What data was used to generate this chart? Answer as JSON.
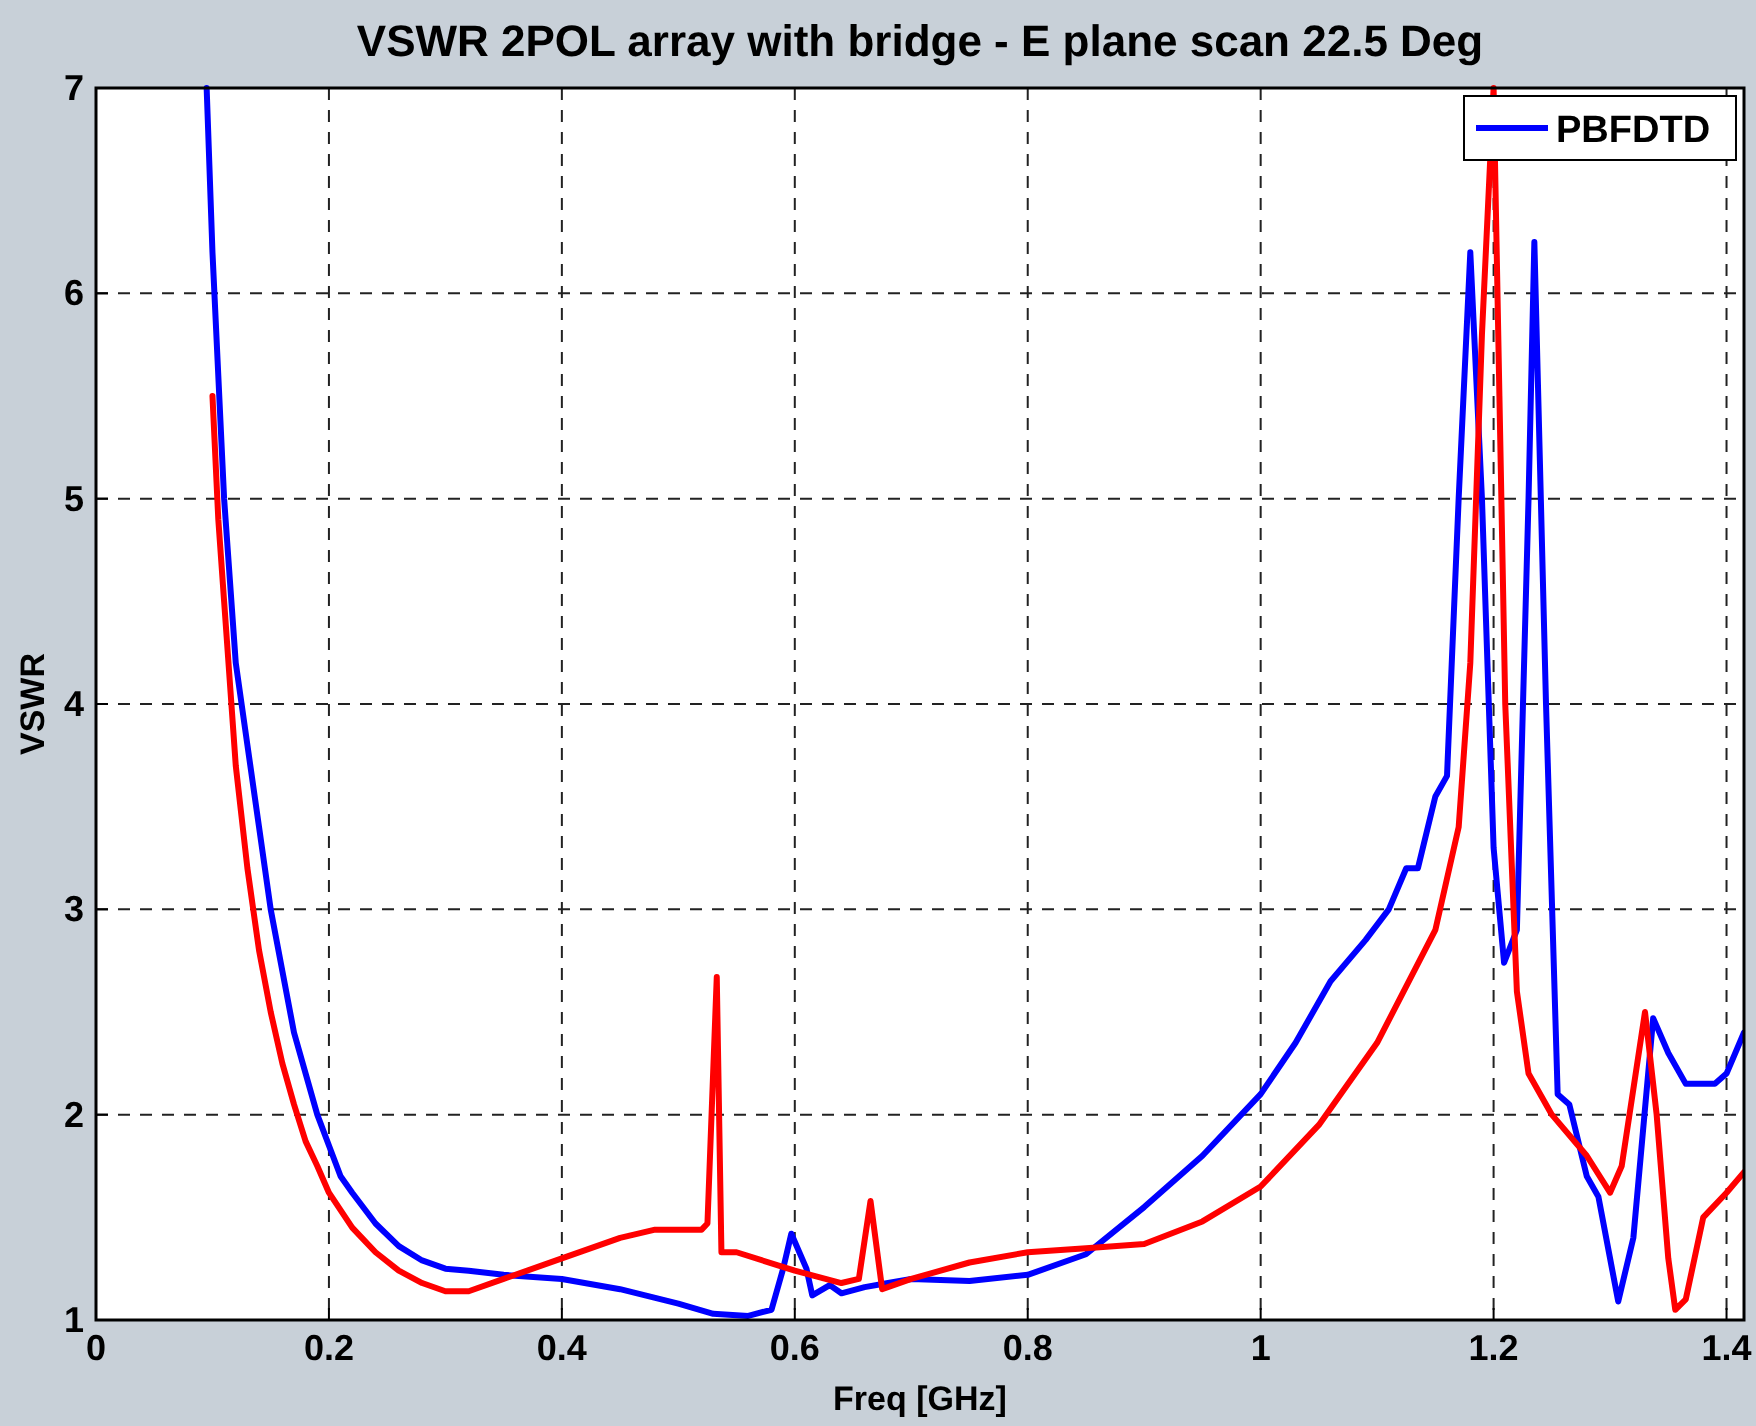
{
  "chart_data": {
    "type": "line",
    "title": "VSWR 2POL array with bridge - E plane scan 22.5 Deg",
    "xlabel": "Freq [GHz]",
    "ylabel": "VSWR",
    "xlim": [
      0,
      1.415
    ],
    "ylim": [
      1,
      7
    ],
    "xticks": [
      0,
      0.2,
      0.4,
      0.6,
      0.8,
      1,
      1.2,
      1.4
    ],
    "yticks": [
      1,
      2,
      3,
      4,
      5,
      6,
      7
    ],
    "grid": true,
    "legend": "top right",
    "line_style": "solid",
    "marker": "none",
    "series": [
      {
        "name": "PBFDTD",
        "color": "#0000ff",
        "x": [
          0.095,
          0.1,
          0.11,
          0.12,
          0.13,
          0.14,
          0.15,
          0.16,
          0.17,
          0.18,
          0.19,
          0.2,
          0.21,
          0.22,
          0.24,
          0.26,
          0.28,
          0.3,
          0.32,
          0.35,
          0.4,
          0.45,
          0.5,
          0.53,
          0.56,
          0.58,
          0.59,
          0.597,
          0.61,
          0.615,
          0.63,
          0.64,
          0.66,
          0.68,
          0.7,
          0.75,
          0.8,
          0.85,
          0.9,
          0.95,
          1.0,
          1.03,
          1.06,
          1.09,
          1.11,
          1.125,
          1.135,
          1.15,
          1.16,
          1.17,
          1.18,
          1.19,
          1.2,
          1.209,
          1.22,
          1.23,
          1.235,
          1.245,
          1.255,
          1.265,
          1.28,
          1.29,
          1.3,
          1.307,
          1.32,
          1.337,
          1.35,
          1.365,
          1.38,
          1.39,
          1.4,
          1.415
        ],
        "values": [
          7,
          6.2,
          5.0,
          4.2,
          3.8,
          3.4,
          3.0,
          2.7,
          2.4,
          2.2,
          2.0,
          1.85,
          1.7,
          1.62,
          1.47,
          1.36,
          1.29,
          1.25,
          1.24,
          1.22,
          1.2,
          1.15,
          1.08,
          1.03,
          1.02,
          1.05,
          1.25,
          1.42,
          1.25,
          1.12,
          1.17,
          1.13,
          1.16,
          1.18,
          1.2,
          1.19,
          1.22,
          1.32,
          1.55,
          1.8,
          2.1,
          2.35,
          2.65,
          2.85,
          3.0,
          3.2,
          3.2,
          3.55,
          3.65,
          5.0,
          6.2,
          5.0,
          3.3,
          2.74,
          2.9,
          5.0,
          6.25,
          4.0,
          2.1,
          2.05,
          1.7,
          1.6,
          1.3,
          1.09,
          1.4,
          2.47,
          2.3,
          2.15,
          2.15,
          2.15,
          2.2,
          2.4
        ]
      },
      {
        "color": "#ff0000",
        "x": [
          0.1,
          0.105,
          0.11,
          0.12,
          0.13,
          0.14,
          0.15,
          0.16,
          0.17,
          0.18,
          0.19,
          0.2,
          0.22,
          0.24,
          0.26,
          0.28,
          0.3,
          0.32,
          0.35,
          0.4,
          0.45,
          0.48,
          0.52,
          0.525,
          0.533,
          0.537,
          0.55,
          0.6,
          0.64,
          0.655,
          0.665,
          0.675,
          0.7,
          0.75,
          0.8,
          0.85,
          0.9,
          0.95,
          1.0,
          1.05,
          1.1,
          1.15,
          1.17,
          1.18,
          1.19,
          1.2,
          1.205,
          1.21,
          1.22,
          1.23,
          1.25,
          1.28,
          1.3,
          1.31,
          1.33,
          1.34,
          1.35,
          1.356,
          1.365,
          1.38,
          1.4,
          1.415
        ],
        "values": [
          5.5,
          4.9,
          4.5,
          3.7,
          3.2,
          2.8,
          2.5,
          2.25,
          2.05,
          1.87,
          1.75,
          1.62,
          1.45,
          1.33,
          1.24,
          1.18,
          1.14,
          1.14,
          1.2,
          1.3,
          1.4,
          1.44,
          1.44,
          1.47,
          2.67,
          1.33,
          1.33,
          1.24,
          1.18,
          1.2,
          1.58,
          1.15,
          1.2,
          1.28,
          1.33,
          1.35,
          1.37,
          1.48,
          1.65,
          1.95,
          2.35,
          2.9,
          3.4,
          4.2,
          5.8,
          7,
          5.5,
          4.0,
          2.6,
          2.2,
          2.0,
          1.8,
          1.62,
          1.75,
          2.5,
          2.0,
          1.3,
          1.05,
          1.1,
          1.5,
          1.62,
          1.72
        ]
      }
    ]
  }
}
